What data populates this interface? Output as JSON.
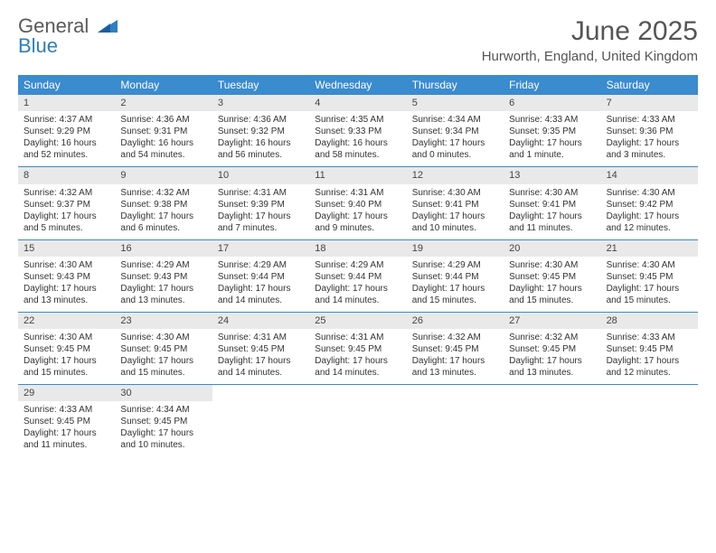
{
  "logo": {
    "text1": "General",
    "text2": "Blue"
  },
  "title": "June 2025",
  "location": "Hurworth, England, United Kingdom",
  "header_bg": "#3b8bcf",
  "weekdays": [
    "Sunday",
    "Monday",
    "Tuesday",
    "Wednesday",
    "Thursday",
    "Friday",
    "Saturday"
  ],
  "days": [
    {
      "n": "1",
      "sr": "4:37 AM",
      "ss": "9:29 PM",
      "dl": "16 hours and 52 minutes."
    },
    {
      "n": "2",
      "sr": "4:36 AM",
      "ss": "9:31 PM",
      "dl": "16 hours and 54 minutes."
    },
    {
      "n": "3",
      "sr": "4:36 AM",
      "ss": "9:32 PM",
      "dl": "16 hours and 56 minutes."
    },
    {
      "n": "4",
      "sr": "4:35 AM",
      "ss": "9:33 PM",
      "dl": "16 hours and 58 minutes."
    },
    {
      "n": "5",
      "sr": "4:34 AM",
      "ss": "9:34 PM",
      "dl": "17 hours and 0 minutes."
    },
    {
      "n": "6",
      "sr": "4:33 AM",
      "ss": "9:35 PM",
      "dl": "17 hours and 1 minute."
    },
    {
      "n": "7",
      "sr": "4:33 AM",
      "ss": "9:36 PM",
      "dl": "17 hours and 3 minutes."
    },
    {
      "n": "8",
      "sr": "4:32 AM",
      "ss": "9:37 PM",
      "dl": "17 hours and 5 minutes."
    },
    {
      "n": "9",
      "sr": "4:32 AM",
      "ss": "9:38 PM",
      "dl": "17 hours and 6 minutes."
    },
    {
      "n": "10",
      "sr": "4:31 AM",
      "ss": "9:39 PM",
      "dl": "17 hours and 7 minutes."
    },
    {
      "n": "11",
      "sr": "4:31 AM",
      "ss": "9:40 PM",
      "dl": "17 hours and 9 minutes."
    },
    {
      "n": "12",
      "sr": "4:30 AM",
      "ss": "9:41 PM",
      "dl": "17 hours and 10 minutes."
    },
    {
      "n": "13",
      "sr": "4:30 AM",
      "ss": "9:41 PM",
      "dl": "17 hours and 11 minutes."
    },
    {
      "n": "14",
      "sr": "4:30 AM",
      "ss": "9:42 PM",
      "dl": "17 hours and 12 minutes."
    },
    {
      "n": "15",
      "sr": "4:30 AM",
      "ss": "9:43 PM",
      "dl": "17 hours and 13 minutes."
    },
    {
      "n": "16",
      "sr": "4:29 AM",
      "ss": "9:43 PM",
      "dl": "17 hours and 13 minutes."
    },
    {
      "n": "17",
      "sr": "4:29 AM",
      "ss": "9:44 PM",
      "dl": "17 hours and 14 minutes."
    },
    {
      "n": "18",
      "sr": "4:29 AM",
      "ss": "9:44 PM",
      "dl": "17 hours and 14 minutes."
    },
    {
      "n": "19",
      "sr": "4:29 AM",
      "ss": "9:44 PM",
      "dl": "17 hours and 15 minutes."
    },
    {
      "n": "20",
      "sr": "4:30 AM",
      "ss": "9:45 PM",
      "dl": "17 hours and 15 minutes."
    },
    {
      "n": "21",
      "sr": "4:30 AM",
      "ss": "9:45 PM",
      "dl": "17 hours and 15 minutes."
    },
    {
      "n": "22",
      "sr": "4:30 AM",
      "ss": "9:45 PM",
      "dl": "17 hours and 15 minutes."
    },
    {
      "n": "23",
      "sr": "4:30 AM",
      "ss": "9:45 PM",
      "dl": "17 hours and 15 minutes."
    },
    {
      "n": "24",
      "sr": "4:31 AM",
      "ss": "9:45 PM",
      "dl": "17 hours and 14 minutes."
    },
    {
      "n": "25",
      "sr": "4:31 AM",
      "ss": "9:45 PM",
      "dl": "17 hours and 14 minutes."
    },
    {
      "n": "26",
      "sr": "4:32 AM",
      "ss": "9:45 PM",
      "dl": "17 hours and 13 minutes."
    },
    {
      "n": "27",
      "sr": "4:32 AM",
      "ss": "9:45 PM",
      "dl": "17 hours and 13 minutes."
    },
    {
      "n": "28",
      "sr": "4:33 AM",
      "ss": "9:45 PM",
      "dl": "17 hours and 12 minutes."
    },
    {
      "n": "29",
      "sr": "4:33 AM",
      "ss": "9:45 PM",
      "dl": "17 hours and 11 minutes."
    },
    {
      "n": "30",
      "sr": "4:34 AM",
      "ss": "9:45 PM",
      "dl": "17 hours and 10 minutes."
    }
  ],
  "labels": {
    "sunrise": "Sunrise: ",
    "sunset": "Sunset: ",
    "daylight": "Daylight: "
  }
}
